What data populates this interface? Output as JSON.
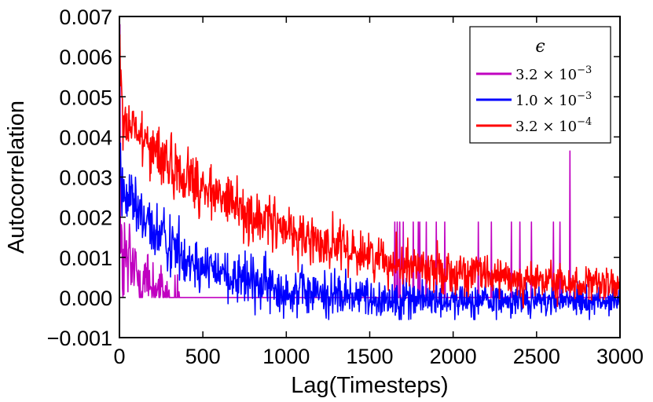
{
  "chart_data": {
    "type": "line",
    "title": "",
    "xlabel": "Lag(Timesteps)",
    "ylabel": "Autocorrelation",
    "xlim": [
      0,
      3000
    ],
    "ylim": [
      -0.001,
      0.007
    ],
    "xticks": [
      0,
      500,
      1000,
      1500,
      2000,
      2500,
      3000
    ],
    "xtick_labels": [
      "0",
      "500",
      "1000",
      "1500",
      "2000",
      "2500",
      "3000"
    ],
    "yticks": [
      -0.001,
      0.0,
      0.001,
      0.002,
      0.003,
      0.004,
      0.005,
      0.006,
      0.007
    ],
    "ytick_labels": [
      "−0.001",
      "0.000",
      "0.001",
      "0.002",
      "0.003",
      "0.004",
      "0.005",
      "0.006",
      "0.007"
    ],
    "grid": false,
    "legend": {
      "title": "ϵ",
      "position": "top-right",
      "entries": [
        {
          "mantissa": "3.2",
          "exponent": "−3"
        },
        {
          "mantissa": "1.0",
          "exponent": "−3"
        },
        {
          "mantissa": "3.2",
          "exponent": "−4"
        }
      ]
    },
    "series": [
      {
        "name": "3.2 × 10^-3",
        "color": "#c000c0",
        "kind": "spiky",
        "mean_start": 0.0009,
        "noise_start": 0.0011,
        "spike_value": 0.00188,
        "spikes": [
          1650,
          1665,
          1680,
          1700,
          1760,
          1790,
          1800,
          1840,
          1900,
          1950,
          2150,
          2230,
          2350,
          2400,
          2470,
          2600,
          2640
        ],
        "peak": {
          "x": 2700,
          "y": 0.00365
        }
      },
      {
        "name": "1.0 × 10^-3",
        "color": "#0000ff",
        "kind": "decay",
        "start": 0.0027,
        "tau": 450,
        "floor": -0.0001,
        "noise_start": 0.0009,
        "noise_end": 0.00035
      },
      {
        "name": "3.2 × 10^-4",
        "color": "#ff0000",
        "kind": "decay",
        "start": 0.0045,
        "tau": 1000,
        "floor": 5e-05,
        "noise_start": 0.0009,
        "noise_end": 0.00045
      }
    ]
  }
}
